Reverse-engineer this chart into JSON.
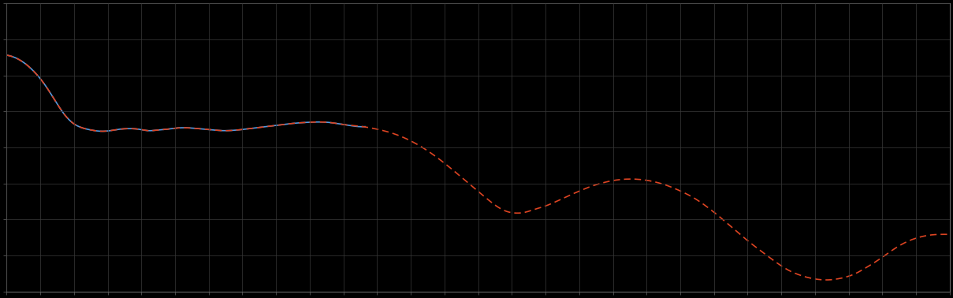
{
  "background_color": "#000000",
  "plot_bg_color": "#000000",
  "grid_color": "#3a3a3a",
  "line1_color": "#5599dd",
  "line2_color": "#dd4422",
  "fig_width": 12.09,
  "fig_height": 3.78,
  "dpi": 100,
  "x_ticks_count": 29,
  "y_ticks_count": 9,
  "spine_color": "#666666"
}
